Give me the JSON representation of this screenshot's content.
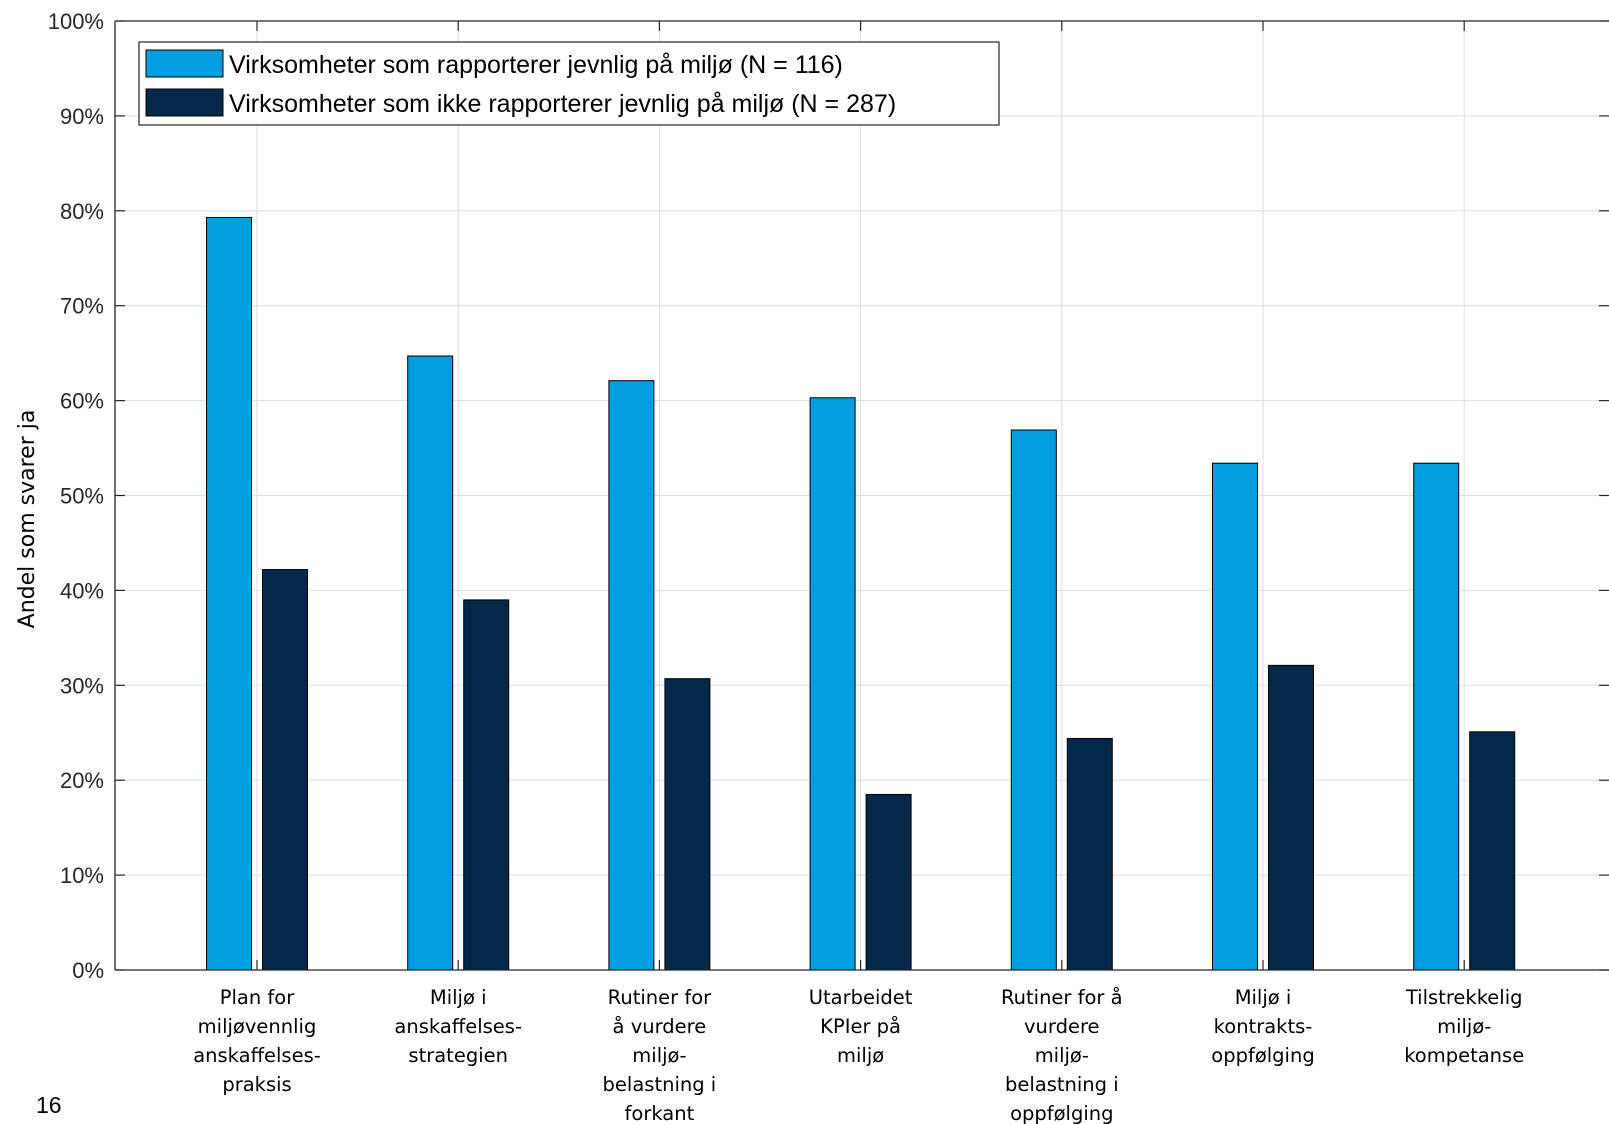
{
  "page_number": "16",
  "chart_data": {
    "type": "bar",
    "ylabel": "Andel som svarer ja",
    "ylim": [
      0,
      100
    ],
    "yticks": [
      "0%",
      "10%",
      "20%",
      "30%",
      "40%",
      "50%",
      "60%",
      "70%",
      "80%",
      "90%",
      "100%"
    ],
    "grid": true,
    "legend_position": "top-left",
    "categories": [
      [
        "Plan for",
        "miljøvennlig",
        "anskaffelses-",
        "praksis"
      ],
      [
        "Miljø i",
        "anskaffelses-",
        "strategien"
      ],
      [
        "Rutiner for",
        "å vurdere",
        "miljø-",
        "belastning i",
        "forkant"
      ],
      [
        "Utarbeidet",
        "KPIer på",
        "miljø"
      ],
      [
        "Rutiner for å",
        "vurdere",
        "miljø-",
        "belastning i",
        "oppfølging"
      ],
      [
        "Miljø i",
        "kontrakts-",
        "oppfølging"
      ],
      [
        "Tilstrekkelig",
        "miljø-",
        "kompetanse"
      ]
    ],
    "series": [
      {
        "name": "Virksomheter som rapporterer jevnlig på miljø (N = 116)",
        "color": "#009ee0",
        "values": [
          79.3,
          64.7,
          62.1,
          60.3,
          56.9,
          53.4,
          53.4
        ]
      },
      {
        "name": "Virksomheter som ikke rapporterer jevnlig på miljø (N = 287)",
        "color": "#03284a",
        "values": [
          42.2,
          39.0,
          30.7,
          18.5,
          24.4,
          32.1,
          25.1
        ]
      }
    ]
  }
}
